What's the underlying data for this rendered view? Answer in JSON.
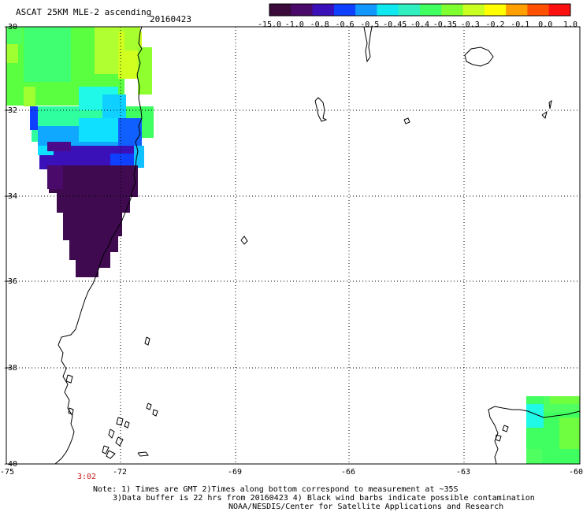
{
  "header": {
    "title": "ASCAT 25KM MLE-2 ascending",
    "date": "20160423"
  },
  "colorbar": {
    "labels": [
      "-15.0",
      "-1.0",
      "-0.8",
      "-0.6",
      "-0.5",
      "-0.45",
      "-0.4",
      "-0.35",
      "-0.3",
      "-0.2",
      "-0.1",
      "0.0",
      "1.0"
    ],
    "colors": [
      "#3a0a3a",
      "#4a0a6a",
      "#3a10b8",
      "#1040ff",
      "#1098ff",
      "#10e8f0",
      "#30f0c0",
      "#40ff60",
      "#80ff30",
      "#c8ff20",
      "#ffff00",
      "#ffa000",
      "#ff5000",
      "#ff1010"
    ]
  },
  "axes": {
    "lat_labels": [
      "-30",
      "-32",
      "-34",
      "-36",
      "-38",
      "-40"
    ],
    "lon_labels": [
      "-75",
      "-72",
      "-69",
      "-66",
      "-63",
      "-60"
    ]
  },
  "footer": {
    "pass_time": "3:02",
    "note_line1": "Note: 1) Times are GMT 2)Times along bottom correspond to measurement at ~35S",
    "note_line2": "3)Data buffer is 22 hrs from 20160423 4) Black wind barbs indicate possible contamination",
    "note_line3": "NOAA/NESDIS/Center for Satellite Applications and Research"
  }
}
